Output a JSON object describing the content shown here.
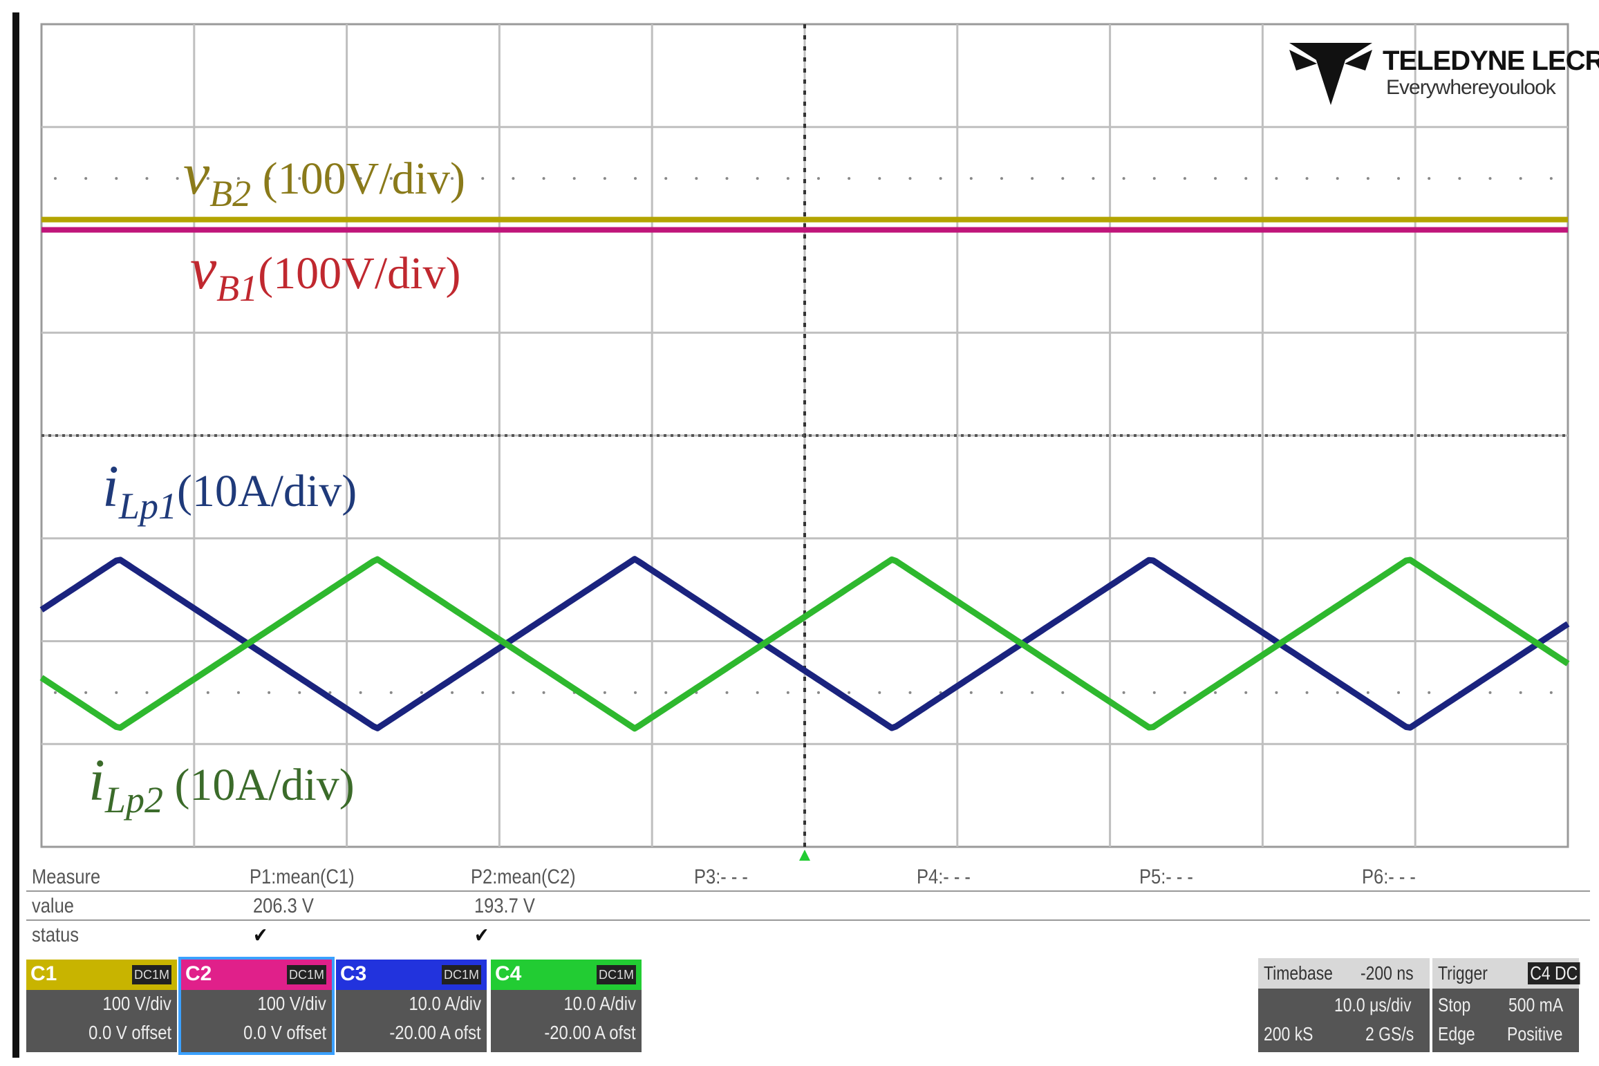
{
  "labels": {
    "vb2": {
      "sym": "v",
      "sub": "B2",
      "scale": " (100V/div)"
    },
    "vb1": {
      "sym": "v",
      "sub": "B1",
      "scale": "(100V/div)"
    },
    "ilp1": {
      "sym": "i",
      "sub": "Lp1",
      "scale": "(10A/div)"
    },
    "ilp2": {
      "sym": "i",
      "sub": "Lp2",
      "scale": " (10A/div)"
    }
  },
  "logo": {
    "brand": "TELEDYNE LECROY",
    "tagline": "Everywhereyoulook"
  },
  "measure": {
    "row_labels": [
      "Measure",
      "value",
      "status"
    ],
    "params": [
      {
        "name": "P1:mean(C1)",
        "value": "206.3 V",
        "status": "✔"
      },
      {
        "name": "P2:mean(C2)",
        "value": "193.7 V",
        "status": "✔"
      },
      {
        "name": "P3:- - -",
        "value": "",
        "status": ""
      },
      {
        "name": "P4:- - -",
        "value": "",
        "status": ""
      },
      {
        "name": "P5:- - -",
        "value": "",
        "status": ""
      },
      {
        "name": "P6:- - -",
        "value": "",
        "status": ""
      }
    ]
  },
  "channels": [
    {
      "name": "C1",
      "tags": [
        "DC1M"
      ],
      "vdiv": "100 V/div",
      "offset": "0.0 V offset",
      "color": "#c8b400"
    },
    {
      "name": "C2",
      "tags": [
        "DC1M"
      ],
      "vdiv": "100 V/div",
      "offset": "0.0 V offset",
      "color": "#e0208a"
    },
    {
      "name": "C3",
      "tags": [
        "DC1M"
      ],
      "vdiv": "10.0 A/div",
      "offset": "-20.00 A ofst",
      "color": "#2233dd"
    },
    {
      "name": "C4",
      "tags": [
        "DC1M"
      ],
      "vdiv": "10.0 A/div",
      "offset": "-20.00 A ofst",
      "color": "#22cc33"
    }
  ],
  "timebase": {
    "title": "Timebase",
    "delay": "-200 ns",
    "tdiv": "10.0 μs/div",
    "samples": "200 kS",
    "rate": "2 GS/s"
  },
  "trigger": {
    "title": "Trigger",
    "badge": "C4 DC",
    "mode": "Stop",
    "level": "500 mA",
    "type": "Edge",
    "slope": "Positive"
  },
  "colors": {
    "vb2": "#b3a400",
    "vb1": "#c0157a",
    "ilp1": "#1a237e",
    "ilp2": "#2eb82e",
    "grid": "#bfbfbf"
  }
}
